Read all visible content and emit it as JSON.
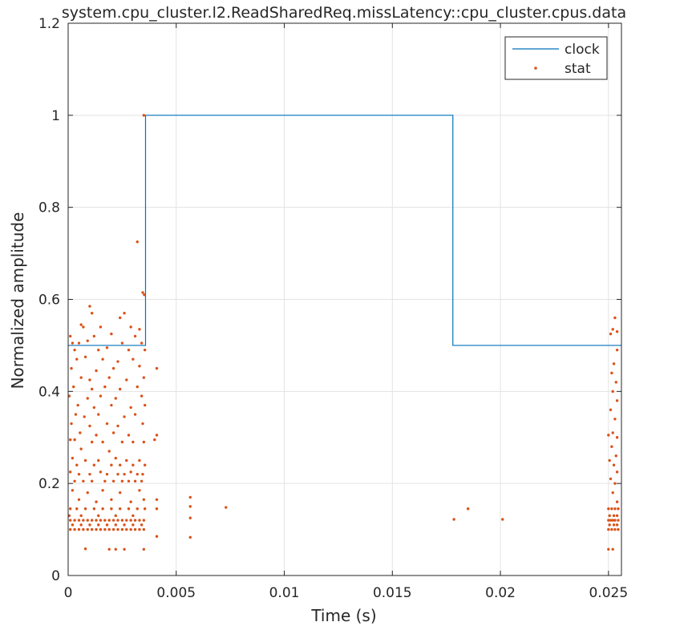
{
  "chart_data": {
    "type": "line",
    "title": "system.cpu_cluster.l2.ReadSharedReq.missLatency::cpu_cluster.cpus.data",
    "xlabel": "Time (s)",
    "ylabel": "Normalized amplitude",
    "xlim": [
      0,
      0.0256
    ],
    "ylim": [
      0,
      1.2
    ],
    "xticks": [
      0,
      0.005,
      0.01,
      0.015,
      0.02,
      0.025
    ],
    "xtick_labels": [
      "0",
      "0.005",
      "0.01",
      "0.015",
      "0.02",
      "0.025"
    ],
    "yticks": [
      0,
      0.2,
      0.4,
      0.6,
      0.8,
      1,
      1.2
    ],
    "ytick_labels": [
      "0",
      "0.2",
      "0.4",
      "0.6",
      "0.8",
      "1",
      "1.2"
    ],
    "grid": true,
    "legend_position": "top-right",
    "series": [
      {
        "name": "clock",
        "kind": "step-line",
        "color": "#0072BD",
        "x": [
          0,
          0.00358,
          0.00358,
          0.0178,
          0.0178,
          0.0256
        ],
        "y": [
          0.5,
          0.5,
          1.0,
          1.0,
          0.5,
          0.5
        ]
      },
      {
        "name": "stat",
        "kind": "scatter",
        "color": "#D95319",
        "points": [
          [
            0.0035,
            1.0
          ],
          [
            0.0032,
            0.725
          ],
          [
            0.00345,
            0.615
          ],
          [
            0.00352,
            0.61
          ],
          [
            0.001,
            0.585
          ],
          [
            0.0011,
            0.57
          ],
          [
            0.0026,
            0.57
          ],
          [
            0.0024,
            0.56
          ],
          [
            0.0006,
            0.545
          ],
          [
            0.0007,
            0.54
          ],
          [
            0.0015,
            0.54
          ],
          [
            0.0029,
            0.54
          ],
          [
            0.0033,
            0.535
          ],
          [
            0.0001,
            0.52
          ],
          [
            0.0012,
            0.52
          ],
          [
            0.002,
            0.525
          ],
          [
            0.0031,
            0.52
          ],
          [
            0.0002,
            0.505
          ],
          [
            0.0005,
            0.505
          ],
          [
            0.0009,
            0.51
          ],
          [
            0.0025,
            0.505
          ],
          [
            0.0034,
            0.505
          ],
          [
            0.0003,
            0.49
          ],
          [
            0.0014,
            0.49
          ],
          [
            0.0018,
            0.495
          ],
          [
            0.0028,
            0.49
          ],
          [
            0.00355,
            0.49
          ],
          [
            0.0004,
            0.47
          ],
          [
            0.0008,
            0.475
          ],
          [
            0.0016,
            0.47
          ],
          [
            0.0023,
            0.465
          ],
          [
            0.003,
            0.47
          ],
          [
            0.00015,
            0.45
          ],
          [
            0.0013,
            0.445
          ],
          [
            0.0021,
            0.45
          ],
          [
            0.0033,
            0.455
          ],
          [
            0.0041,
            0.45
          ],
          [
            0.0006,
            0.43
          ],
          [
            0.001,
            0.425
          ],
          [
            0.0019,
            0.43
          ],
          [
            0.0027,
            0.425
          ],
          [
            0.0035,
            0.43
          ],
          [
            0.00025,
            0.41
          ],
          [
            0.0011,
            0.405
          ],
          [
            0.0017,
            0.41
          ],
          [
            0.0024,
            0.405
          ],
          [
            0.0032,
            0.41
          ],
          [
            5e-05,
            0.39
          ],
          [
            0.0009,
            0.385
          ],
          [
            0.0015,
            0.39
          ],
          [
            0.0022,
            0.385
          ],
          [
            0.0034,
            0.39
          ],
          [
            0.00045,
            0.37
          ],
          [
            0.0012,
            0.365
          ],
          [
            0.002,
            0.37
          ],
          [
            0.0029,
            0.365
          ],
          [
            0.00355,
            0.37
          ],
          [
            0.00035,
            0.35
          ],
          [
            0.00075,
            0.345
          ],
          [
            0.0014,
            0.35
          ],
          [
            0.0026,
            0.345
          ],
          [
            0.0031,
            0.35
          ],
          [
            0.00015,
            0.33
          ],
          [
            0.001,
            0.325
          ],
          [
            0.0018,
            0.33
          ],
          [
            0.0023,
            0.325
          ],
          [
            0.00345,
            0.33
          ],
          [
            0.00055,
            0.31
          ],
          [
            0.0013,
            0.305
          ],
          [
            0.0021,
            0.31
          ],
          [
            0.0028,
            0.305
          ],
          [
            0.0041,
            0.305
          ],
          [
            0.0001,
            0.295
          ],
          [
            0.0003,
            0.295
          ],
          [
            0.0011,
            0.29
          ],
          [
            0.0016,
            0.29
          ],
          [
            0.0025,
            0.29
          ],
          [
            0.003,
            0.29
          ],
          [
            0.0035,
            0.29
          ],
          [
            0.004,
            0.295
          ],
          [
            0.0006,
            0.275
          ],
          [
            0.0019,
            0.27
          ],
          [
            0.0002,
            0.255
          ],
          [
            0.0008,
            0.25
          ],
          [
            0.0014,
            0.25
          ],
          [
            0.0022,
            0.255
          ],
          [
            0.0027,
            0.25
          ],
          [
            0.0033,
            0.25
          ],
          [
            0.0004,
            0.24
          ],
          [
            0.0012,
            0.24
          ],
          [
            0.002,
            0.24
          ],
          [
            0.0024,
            0.24
          ],
          [
            0.003,
            0.24
          ],
          [
            0.00355,
            0.24
          ],
          [
            0.0001,
            0.225
          ],
          [
            0.0005,
            0.22
          ],
          [
            0.001,
            0.22
          ],
          [
            0.0015,
            0.225
          ],
          [
            0.0018,
            0.22
          ],
          [
            0.0023,
            0.22
          ],
          [
            0.0026,
            0.22
          ],
          [
            0.0029,
            0.225
          ],
          [
            0.0032,
            0.22
          ],
          [
            0.00345,
            0.22
          ],
          [
            0.0003,
            0.205
          ],
          [
            0.0007,
            0.205
          ],
          [
            0.0011,
            0.205
          ],
          [
            0.0017,
            0.205
          ],
          [
            0.0021,
            0.205
          ],
          [
            0.0025,
            0.205
          ],
          [
            0.0028,
            0.205
          ],
          [
            0.0031,
            0.205
          ],
          [
            0.0034,
            0.205
          ],
          [
            0.0002,
            0.185
          ],
          [
            0.0009,
            0.18
          ],
          [
            0.0016,
            0.185
          ],
          [
            0.0024,
            0.18
          ],
          [
            0.0033,
            0.185
          ],
          [
            0.0005,
            0.165
          ],
          [
            0.0013,
            0.16
          ],
          [
            0.002,
            0.165
          ],
          [
            0.0029,
            0.16
          ],
          [
            0.0035,
            0.165
          ],
          [
            0.0041,
            0.165
          ],
          [
            0.0001,
            0.145
          ],
          [
            0.0004,
            0.145
          ],
          [
            0.0008,
            0.145
          ],
          [
            0.0012,
            0.145
          ],
          [
            0.0016,
            0.145
          ],
          [
            0.002,
            0.145
          ],
          [
            0.0024,
            0.145
          ],
          [
            0.0028,
            0.145
          ],
          [
            0.0032,
            0.145
          ],
          [
            0.00355,
            0.145
          ],
          [
            0.0041,
            0.145
          ],
          [
            5e-05,
            0.13
          ],
          [
            0.0006,
            0.13
          ],
          [
            0.0014,
            0.13
          ],
          [
            0.0022,
            0.13
          ],
          [
            0.003,
            0.13
          ],
          [
            0.0001,
            0.12
          ],
          [
            0.0003,
            0.12
          ],
          [
            0.0005,
            0.12
          ],
          [
            0.0007,
            0.12
          ],
          [
            0.0009,
            0.12
          ],
          [
            0.0011,
            0.12
          ],
          [
            0.0013,
            0.12
          ],
          [
            0.0015,
            0.12
          ],
          [
            0.0017,
            0.12
          ],
          [
            0.0019,
            0.12
          ],
          [
            0.0021,
            0.12
          ],
          [
            0.0023,
            0.12
          ],
          [
            0.0025,
            0.12
          ],
          [
            0.0027,
            0.12
          ],
          [
            0.0029,
            0.12
          ],
          [
            0.0031,
            0.12
          ],
          [
            0.0033,
            0.12
          ],
          [
            0.0035,
            0.12
          ],
          [
            0.0002,
            0.11
          ],
          [
            0.0006,
            0.11
          ],
          [
            0.001,
            0.11
          ],
          [
            0.0014,
            0.11
          ],
          [
            0.0018,
            0.11
          ],
          [
            0.0022,
            0.11
          ],
          [
            0.0026,
            0.11
          ],
          [
            0.003,
            0.11
          ],
          [
            0.0034,
            0.11
          ],
          [
            0.0001,
            0.1
          ],
          [
            0.0003,
            0.1
          ],
          [
            0.0005,
            0.1
          ],
          [
            0.0007,
            0.1
          ],
          [
            0.0009,
            0.1
          ],
          [
            0.0011,
            0.1
          ],
          [
            0.0013,
            0.1
          ],
          [
            0.0015,
            0.1
          ],
          [
            0.0017,
            0.1
          ],
          [
            0.0019,
            0.1
          ],
          [
            0.0021,
            0.1
          ],
          [
            0.0023,
            0.1
          ],
          [
            0.0025,
            0.1
          ],
          [
            0.0027,
            0.1
          ],
          [
            0.0029,
            0.1
          ],
          [
            0.0031,
            0.1
          ],
          [
            0.0033,
            0.1
          ],
          [
            0.0035,
            0.1
          ],
          [
            0.0041,
            0.085
          ],
          [
            0.0008,
            0.058
          ],
          [
            0.0019,
            0.057
          ],
          [
            0.0022,
            0.057
          ],
          [
            0.0026,
            0.057
          ],
          [
            0.0035,
            0.057
          ],
          [
            0.00565,
            0.17
          ],
          [
            0.00565,
            0.15
          ],
          [
            0.00565,
            0.125
          ],
          [
            0.00565,
            0.083
          ],
          [
            0.0073,
            0.148
          ],
          [
            0.01785,
            0.122
          ],
          [
            0.0185,
            0.145
          ],
          [
            0.0201,
            0.122
          ],
          [
            0.0253,
            0.56
          ],
          [
            0.0252,
            0.535
          ],
          [
            0.0254,
            0.53
          ],
          [
            0.0251,
            0.525
          ],
          [
            0.0254,
            0.49
          ],
          [
            0.02525,
            0.46
          ],
          [
            0.02515,
            0.44
          ],
          [
            0.02535,
            0.42
          ],
          [
            0.0252,
            0.4
          ],
          [
            0.0254,
            0.38
          ],
          [
            0.0251,
            0.36
          ],
          [
            0.0253,
            0.34
          ],
          [
            0.0252,
            0.31
          ],
          [
            0.025,
            0.305
          ],
          [
            0.0254,
            0.3
          ],
          [
            0.02515,
            0.28
          ],
          [
            0.02535,
            0.26
          ],
          [
            0.02505,
            0.25
          ],
          [
            0.02525,
            0.24
          ],
          [
            0.0254,
            0.225
          ],
          [
            0.0251,
            0.21
          ],
          [
            0.0253,
            0.2
          ],
          [
            0.0252,
            0.18
          ],
          [
            0.0254,
            0.16
          ],
          [
            0.025,
            0.145
          ],
          [
            0.02515,
            0.145
          ],
          [
            0.0253,
            0.145
          ],
          [
            0.02545,
            0.145
          ],
          [
            0.02505,
            0.13
          ],
          [
            0.02525,
            0.13
          ],
          [
            0.0254,
            0.13
          ],
          [
            0.025,
            0.12
          ],
          [
            0.0251,
            0.12
          ],
          [
            0.0252,
            0.12
          ],
          [
            0.0253,
            0.12
          ],
          [
            0.02545,
            0.12
          ],
          [
            0.02505,
            0.11
          ],
          [
            0.02525,
            0.11
          ],
          [
            0.0254,
            0.11
          ],
          [
            0.025,
            0.1
          ],
          [
            0.02515,
            0.1
          ],
          [
            0.0253,
            0.1
          ],
          [
            0.02545,
            0.1
          ],
          [
            0.025,
            0.057
          ],
          [
            0.0252,
            0.057
          ]
        ]
      }
    ]
  }
}
